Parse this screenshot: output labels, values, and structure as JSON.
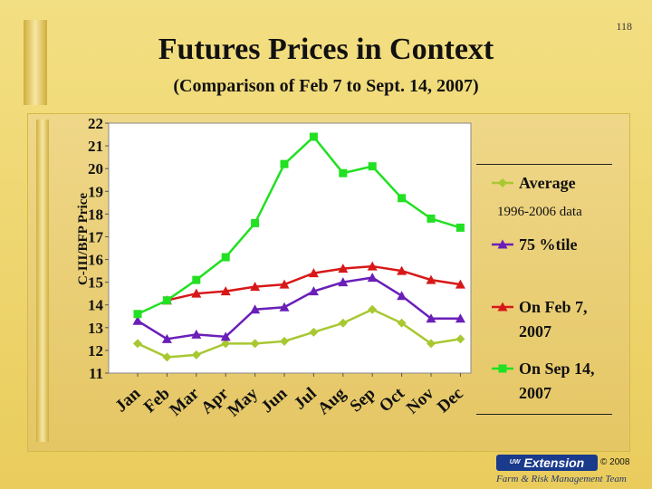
{
  "page_number": "118",
  "title": "Futures Prices in Context",
  "subtitle": "(Comparison of Feb 7 to Sept. 14, 2007)",
  "logo_text": "Extension",
  "logo_small_text": "UW",
  "copyright": "© 2008",
  "team": "Farm & Risk Management Team",
  "chart_data": {
    "type": "line",
    "ylabel": "C-III/BFP Price",
    "xlabel": "",
    "ylim": [
      11,
      22
    ],
    "yticks": [
      11,
      12,
      13,
      14,
      15,
      16,
      17,
      18,
      19,
      20,
      21,
      22
    ],
    "categories": [
      "Jan",
      "Feb",
      "Mar",
      "Apr",
      "May",
      "Jun",
      "Jul",
      "Aug",
      "Sep",
      "Oct",
      "Nov",
      "Dec"
    ],
    "grid": false,
    "legend_position": "right",
    "series": [
      {
        "name": "Average",
        "subname": "1996-2006 data",
        "color": "#a8c832",
        "marker": "diamond",
        "values": [
          12.3,
          11.7,
          11.8,
          12.3,
          12.3,
          12.4,
          12.8,
          13.2,
          13.8,
          13.2,
          12.3,
          12.5
        ]
      },
      {
        "name": "75 %tile",
        "subname": "",
        "color": "#6a1fb8",
        "marker": "triangle",
        "values": [
          13.3,
          12.5,
          12.7,
          12.6,
          13.8,
          13.9,
          14.6,
          15.0,
          15.2,
          14.4,
          13.4,
          13.4
        ]
      },
      {
        "name": "On Feb 7, 2007",
        "subname": "",
        "color": "#d81818",
        "marker": "triangle",
        "values": [
          null,
          14.2,
          14.5,
          14.6,
          14.8,
          14.9,
          15.4,
          15.6,
          15.7,
          15.5,
          15.1,
          14.9
        ]
      },
      {
        "name": "On Sep 14, 2007",
        "subname": "",
        "color": "#22e022",
        "marker": "square",
        "values": [
          13.6,
          14.2,
          15.1,
          16.1,
          17.6,
          20.2,
          21.4,
          19.8,
          20.1,
          18.7,
          17.8,
          17.4
        ]
      }
    ]
  }
}
